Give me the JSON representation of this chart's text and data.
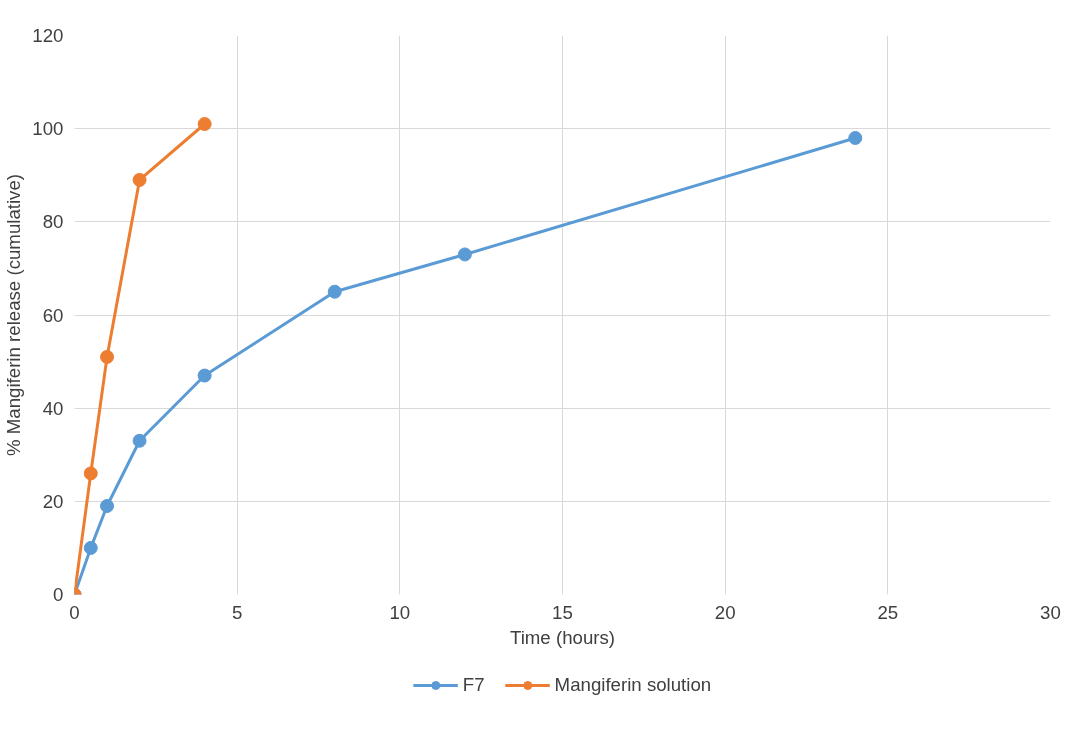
{
  "chart_data": {
    "type": "line",
    "xlabel": "Time (hours)",
    "ylabel": "% Mangiferin release (cumulative)",
    "xlim": [
      0,
      30
    ],
    "xticks": [
      0,
      5,
      10,
      15,
      20,
      25,
      30
    ],
    "ylim": [
      0,
      120
    ],
    "yticks": [
      0,
      20,
      40,
      60,
      80,
      100,
      120
    ],
    "grid": true,
    "legend": "bottom",
    "marker": "circle",
    "line_style": "solid",
    "series": [
      {
        "name": "F7",
        "color": "#5b9bd5",
        "x": [
          0,
          0.5,
          1,
          2,
          4,
          8,
          12,
          24
        ],
        "values": [
          0,
          10,
          19,
          33,
          47,
          65,
          73,
          98
        ]
      },
      {
        "name": "Mangiferin solution",
        "color": "#ed7d31",
        "x": [
          0,
          0.5,
          1,
          2,
          4
        ],
        "values": [
          0,
          26,
          51,
          89,
          101
        ]
      }
    ]
  }
}
